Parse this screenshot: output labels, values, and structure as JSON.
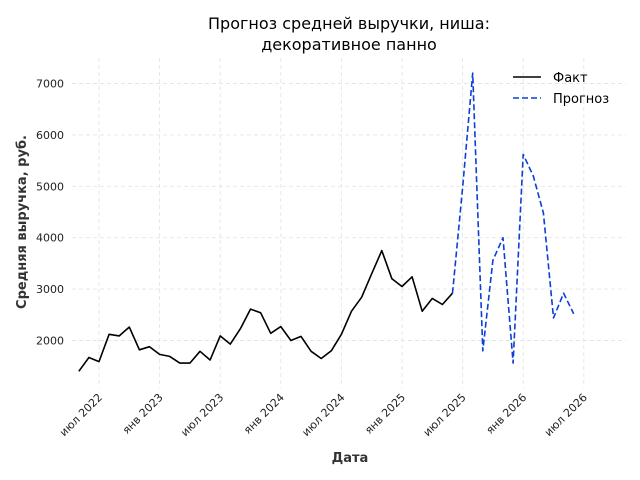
{
  "chart_data": {
    "type": "line",
    "title_lines": [
      "Прогноз средней выручки, ниша:",
      "декоративное панно"
    ],
    "xlabel": "Дата",
    "ylabel": "Средняя выручка, руб.",
    "x_tick_labels": [
      "июл 2022",
      "янв 2023",
      "июл 2023",
      "янв 2024",
      "июл 2024",
      "янв 2025",
      "июл 2025",
      "янв 2026",
      "июл 2026"
    ],
    "y_tick_labels": [
      "2000",
      "3000",
      "4000",
      "5000",
      "6000",
      "7000"
    ],
    "yticks": [
      2000,
      3000,
      4000,
      5000,
      6000,
      7000
    ],
    "ylim": [
      1200,
      7500
    ],
    "grid": true,
    "legend_position": "top-right",
    "series": [
      {
        "name": "Факт",
        "style": "solid",
        "color": "#000000",
        "points": [
          [
            "2022-05",
            1400
          ],
          [
            "2022-06",
            1670
          ],
          [
            "2022-07",
            1590
          ],
          [
            "2022-08",
            2120
          ],
          [
            "2022-09",
            2090
          ],
          [
            "2022-10",
            2260
          ],
          [
            "2022-11",
            1820
          ],
          [
            "2022-12",
            1880
          ],
          [
            "2023-01",
            1730
          ],
          [
            "2023-02",
            1690
          ],
          [
            "2023-03",
            1560
          ],
          [
            "2023-04",
            1560
          ],
          [
            "2023-05",
            1790
          ],
          [
            "2023-06",
            1620
          ],
          [
            "2023-07",
            2090
          ],
          [
            "2023-08",
            1930
          ],
          [
            "2023-09",
            2230
          ],
          [
            "2023-10",
            2610
          ],
          [
            "2023-11",
            2540
          ],
          [
            "2023-12",
            2140
          ],
          [
            "2024-01",
            2270
          ],
          [
            "2024-02",
            2000
          ],
          [
            "2024-03",
            2080
          ],
          [
            "2024-04",
            1790
          ],
          [
            "2024-05",
            1650
          ],
          [
            "2024-06",
            1800
          ],
          [
            "2024-07",
            2120
          ],
          [
            "2024-08",
            2570
          ],
          [
            "2024-09",
            2840
          ],
          [
            "2024-10",
            3300
          ],
          [
            "2024-11",
            3750
          ],
          [
            "2024-12",
            3200
          ],
          [
            "2025-01",
            3050
          ],
          [
            "2025-02",
            3240
          ],
          [
            "2025-03",
            2570
          ],
          [
            "2025-04",
            2820
          ],
          [
            "2025-05",
            2700
          ],
          [
            "2025-06",
            2920
          ]
        ]
      },
      {
        "name": "Прогноз",
        "style": "dashed",
        "color": "#0b3fd6",
        "points": [
          [
            "2025-06",
            2920
          ],
          [
            "2025-07",
            4970
          ],
          [
            "2025-08",
            7200
          ],
          [
            "2025-09",
            1800
          ],
          [
            "2025-10",
            3560
          ],
          [
            "2025-11",
            4000
          ],
          [
            "2025-12",
            1560
          ],
          [
            "2026-01",
            5620
          ],
          [
            "2026-02",
            5200
          ],
          [
            "2026-03",
            4480
          ],
          [
            "2026-04",
            2440
          ],
          [
            "2026-05",
            2920
          ],
          [
            "2026-06",
            2520
          ]
        ]
      }
    ]
  }
}
